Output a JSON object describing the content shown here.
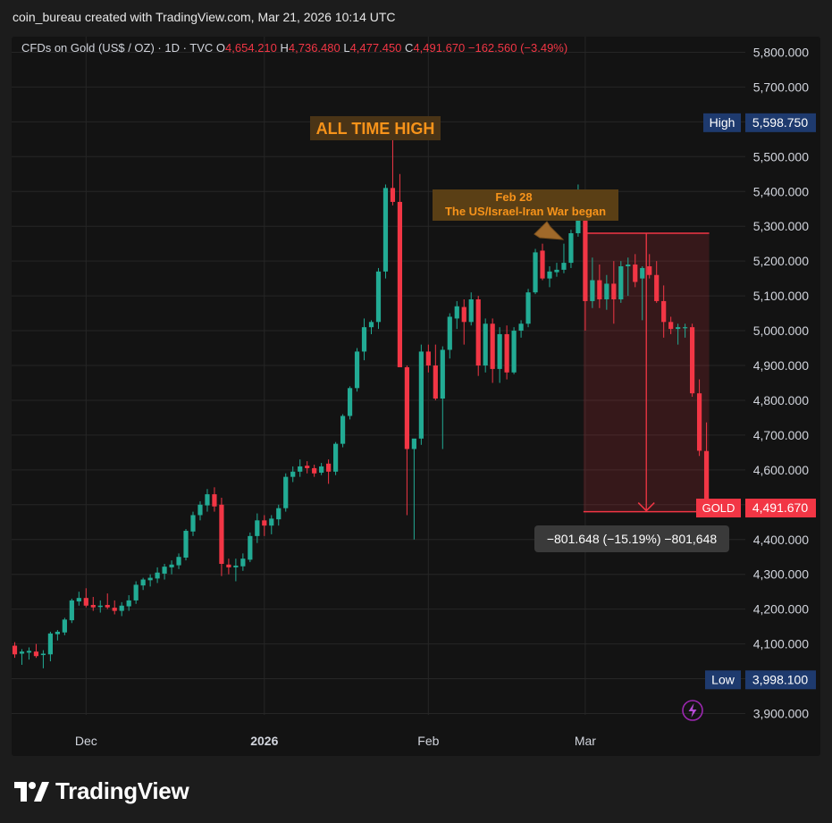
{
  "attribution": "coin_bureau created with TradingView.com, Mar 21, 2026 10:14 UTC",
  "footer_brand": "TradingView",
  "colors": {
    "up": "#22ab94",
    "down": "#f23645",
    "background": "#131313",
    "frame": "#1c1c1c",
    "grid": "#262626",
    "text": "#d1d4dc",
    "annotation": "#f7931a",
    "label_blue": "#1e3a6e"
  },
  "chart_data": {
    "type": "candlestick",
    "legend": {
      "symbol": "CFDs on Gold (US$ / OZ) · 1D · TVC",
      "open_label": "O",
      "open": "4,654.210",
      "high_label": "H",
      "high": "4,736.480",
      "low_label": "L",
      "low": "4,477.450",
      "close_label": "C",
      "close": "4,491.670",
      "change": "−162.560 (−3.49%)"
    },
    "y_ticks": [
      "3,900.000",
      "4,000.000",
      "4,100.000",
      "4,200.000",
      "4,300.000",
      "4,400.000",
      "4,500.000",
      "4,600.000",
      "4,700.000",
      "4,800.000",
      "4,900.000",
      "5,000.000",
      "5,100.000",
      "5,200.000",
      "5,300.000",
      "5,400.000",
      "5,500.000",
      "5,600.000",
      "5,700.000",
      "5,800.000"
    ],
    "y_tick_values": [
      3900,
      4000,
      4100,
      4200,
      4300,
      4400,
      4500,
      4600,
      4700,
      4800,
      4900,
      5000,
      5100,
      5200,
      5300,
      5400,
      5500,
      5600,
      5700,
      5800
    ],
    "ylim": [
      3880,
      5840
    ],
    "x_labels": [
      {
        "label": "Dec",
        "bar": 10,
        "bold": false
      },
      {
        "label": "2026",
        "bar": 35,
        "bold": true
      },
      {
        "label": "Feb",
        "bar": 58,
        "bold": false
      },
      {
        "label": "Mar",
        "bar": 80,
        "bold": false
      }
    ],
    "candles": [
      [
        4095,
        4105,
        4060,
        4070
      ],
      [
        4072,
        4085,
        4040,
        4078
      ],
      [
        4075,
        4090,
        4055,
        4080
      ],
      [
        4078,
        4100,
        4060,
        4065
      ],
      [
        4068,
        4082,
        4030,
        4072
      ],
      [
        4070,
        4135,
        4050,
        4130
      ],
      [
        4128,
        4140,
        4110,
        4135
      ],
      [
        4133,
        4175,
        4125,
        4170
      ],
      [
        4168,
        4230,
        4160,
        4225
      ],
      [
        4222,
        4250,
        4210,
        4232
      ],
      [
        4232,
        4260,
        4205,
        4210
      ],
      [
        4212,
        4235,
        4195,
        4205
      ],
      [
        4206,
        4225,
        4190,
        4210
      ],
      [
        4212,
        4245,
        4200,
        4205
      ],
      [
        4204,
        4225,
        4185,
        4195
      ],
      [
        4195,
        4220,
        4180,
        4210
      ],
      [
        4208,
        4240,
        4195,
        4225
      ],
      [
        4225,
        4280,
        4215,
        4270
      ],
      [
        4268,
        4290,
        4255,
        4285
      ],
      [
        4283,
        4300,
        4265,
        4290
      ],
      [
        4288,
        4320,
        4275,
        4305
      ],
      [
        4302,
        4330,
        4285,
        4322
      ],
      [
        4320,
        4340,
        4300,
        4328
      ],
      [
        4326,
        4360,
        4315,
        4350
      ],
      [
        4348,
        4430,
        4340,
        4425
      ],
      [
        4423,
        4480,
        4410,
        4470
      ],
      [
        4470,
        4510,
        4455,
        4500
      ],
      [
        4498,
        4545,
        4480,
        4530
      ],
      [
        4530,
        4550,
        4480,
        4495
      ],
      [
        4500,
        4520,
        4295,
        4330
      ],
      [
        4328,
        4345,
        4300,
        4320
      ],
      [
        4320,
        4345,
        4280,
        4325
      ],
      [
        4323,
        4360,
        4310,
        4345
      ],
      [
        4342,
        4420,
        4335,
        4410
      ],
      [
        4410,
        4475,
        4390,
        4455
      ],
      [
        4455,
        4470,
        4410,
        4440
      ],
      [
        4440,
        4470,
        4415,
        4460
      ],
      [
        4458,
        4500,
        4440,
        4490
      ],
      [
        4490,
        4590,
        4480,
        4580
      ],
      [
        4580,
        4610,
        4565,
        4595
      ],
      [
        4595,
        4630,
        4580,
        4610
      ],
      [
        4612,
        4625,
        4590,
        4605
      ],
      [
        4605,
        4615,
        4580,
        4590
      ],
      [
        4592,
        4620,
        4585,
        4610
      ],
      [
        4618,
        4630,
        4560,
        4595
      ],
      [
        4595,
        4680,
        4585,
        4675
      ],
      [
        4675,
        4760,
        4665,
        4755
      ],
      [
        4755,
        4840,
        4745,
        4835
      ],
      [
        4835,
        4950,
        4825,
        4940
      ],
      [
        4940,
        5035,
        4915,
        5010
      ],
      [
        5010,
        5030,
        4990,
        5025
      ],
      [
        5025,
        5180,
        5005,
        5170
      ],
      [
        5170,
        5420,
        5150,
        5410
      ],
      [
        5410,
        5598.75,
        5360,
        5370
      ],
      [
        5370,
        5450,
        4910,
        4895
      ],
      [
        4895,
        4900,
        4470,
        4660
      ],
      [
        4660,
        4680,
        4400,
        4690
      ],
      [
        4690,
        4960,
        4672,
        4940
      ],
      [
        4940,
        4960,
        4880,
        4900
      ],
      [
        4900,
        4960,
        4800,
        4805
      ],
      [
        4805,
        4955,
        4660,
        4945
      ],
      [
        4945,
        5050,
        4920,
        5040
      ],
      [
        5035,
        5085,
        5005,
        5070
      ],
      [
        5068,
        5090,
        4960,
        5025
      ],
      [
        5025,
        5110,
        5015,
        5090
      ],
      [
        5090,
        5100,
        4870,
        4900
      ],
      [
        4900,
        5035,
        4880,
        5020
      ],
      [
        5020,
        5035,
        4850,
        4890
      ],
      [
        4890,
        5010,
        4850,
        4990
      ],
      [
        4990,
        5015,
        4860,
        4880
      ],
      [
        4880,
        5010,
        4875,
        5000
      ],
      [
        5000,
        5030,
        4980,
        5020
      ],
      [
        5020,
        5120,
        5010,
        5110
      ],
      [
        5110,
        5235,
        5105,
        5225
      ],
      [
        5230,
        5250,
        5145,
        5150
      ],
      [
        5150,
        5185,
        5125,
        5170
      ],
      [
        5168,
        5195,
        5155,
        5175
      ],
      [
        5175,
        5250,
        5165,
        5195
      ],
      [
        5195,
        5290,
        5180,
        5280
      ],
      [
        5280,
        5420,
        5270,
        5320
      ],
      [
        5320,
        5330,
        5000,
        5085
      ],
      [
        5085,
        5210,
        5065,
        5145
      ],
      [
        5145,
        5190,
        5065,
        5090
      ],
      [
        5090,
        5160,
        5060,
        5135
      ],
      [
        5135,
        5200,
        5020,
        5090
      ],
      [
        5090,
        5200,
        5080,
        5185
      ],
      [
        5185,
        5210,
        5100,
        5190
      ],
      [
        5190,
        5220,
        5125,
        5140
      ],
      [
        5150,
        5185,
        5030,
        5180
      ],
      [
        5185,
        5220,
        5150,
        5160
      ],
      [
        5160,
        5200,
        5080,
        5085
      ],
      [
        5085,
        5130,
        4980,
        5025
      ],
      [
        5025,
        5040,
        4990,
        5005
      ],
      [
        5005,
        5020,
        4960,
        5010
      ],
      [
        5008,
        5020,
        4980,
        5010
      ],
      [
        5010,
        5020,
        4810,
        4820
      ],
      [
        4820,
        4860,
        4640,
        4655
      ],
      [
        4654.21,
        4736.48,
        4477.45,
        4491.67
      ]
    ],
    "annotations": [
      {
        "text": "ALL TIME HIGH"
      },
      {
        "line1": "Feb 28",
        "line2": "The US/Israel-Iran War began"
      }
    ],
    "measure": {
      "top": 5280,
      "bottom": 4480,
      "from_bar": 81,
      "to_bar": 97,
      "label": "−801.648 (−15.19%) −801,648"
    },
    "price_labels": [
      {
        "name": "High",
        "value": "5,598.750",
        "price": 5598.75
      },
      {
        "name": "GOLD",
        "value": "4,491.670",
        "price": 4491.67
      },
      {
        "name": "Low",
        "value": "3,998.100",
        "price": 3998.1
      }
    ]
  }
}
